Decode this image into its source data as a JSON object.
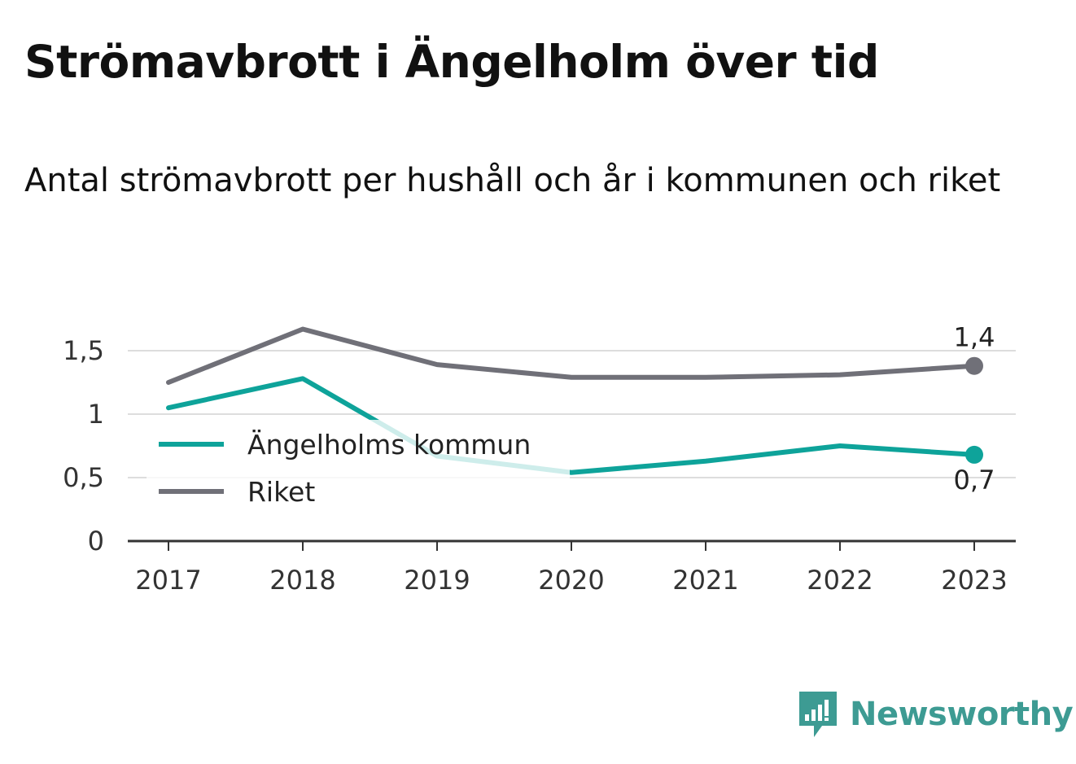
{
  "title": "Strömavbrott i Ängelholm över tid",
  "subtitle": "Antal strömavbrott per hushåll och år i kommunen och riket",
  "brand": "Newsworthy",
  "colors": {
    "kommun": "#0ea39a",
    "riket": "#707078",
    "grid": "#dddddd",
    "axis": "#333333",
    "brand": "#3d9b93"
  },
  "chart_data": {
    "type": "line",
    "x": [
      "2017",
      "2018",
      "2019",
      "2020",
      "2021",
      "2022",
      "2023"
    ],
    "y_ticks": [
      "0",
      "0,5",
      "1",
      "1,5"
    ],
    "ylim": [
      0,
      1.5
    ],
    "grid": true,
    "legend_position": "left",
    "series": [
      {
        "name": "Ängelholms kommun",
        "key": "kommun",
        "values": [
          1.05,
          1.28,
          0.67,
          0.54,
          0.63,
          0.75,
          0.68
        ],
        "end_label": "0,7"
      },
      {
        "name": "Riket",
        "key": "riket",
        "values": [
          1.25,
          1.67,
          1.39,
          1.29,
          1.29,
          1.31,
          1.38
        ],
        "end_label": "1,4"
      }
    ]
  }
}
